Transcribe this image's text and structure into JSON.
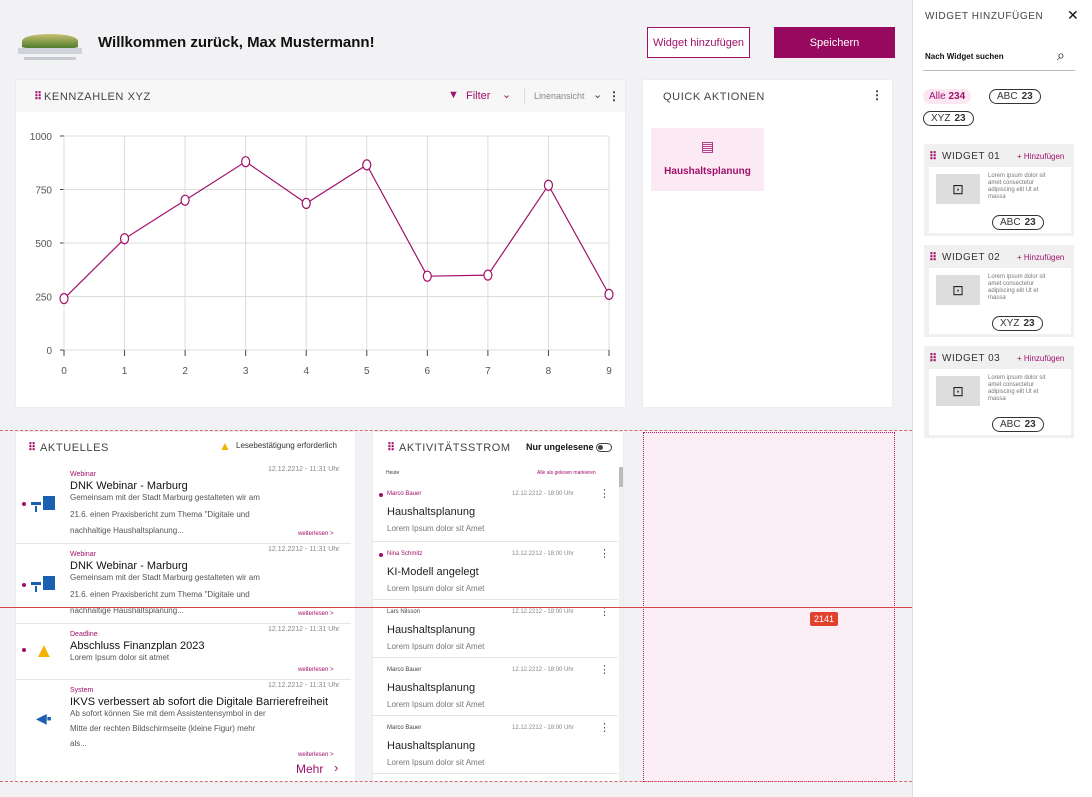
{
  "header": {
    "greeting": "Willkommen zurück, Max Mustermann!",
    "add_widget_label": "Widget hinzufügen",
    "save_label": "Speichern"
  },
  "kennzahlen": {
    "title": "KENNZAHLEN XYZ",
    "filter_label": "Filter",
    "view_label": "Linenansicht"
  },
  "chart_data": {
    "type": "line",
    "x": [
      0,
      1,
      2,
      3,
      4,
      5,
      6,
      7,
      8,
      9
    ],
    "series": [
      {
        "values": [
          240,
          520,
          700,
          880,
          685,
          865,
          345,
          350,
          770,
          260
        ]
      }
    ],
    "x_ticks": [
      "0",
      "1",
      "2",
      "3",
      "4",
      "5",
      "6",
      "7",
      "8",
      "9"
    ],
    "y_ticks": [
      "0",
      "250",
      "500",
      "750",
      "1000"
    ],
    "ylim": [
      0,
      1000
    ],
    "grid": true,
    "color": "#a0106a"
  },
  "quick": {
    "title": "QUICK AKTIONEN",
    "action_label": "Haushaltsplanung"
  },
  "aktuelles": {
    "title": "AKTUELLES",
    "warning": "Lesebestätigung erforderlich",
    "more_label": "Mehr",
    "items": [
      {
        "category": "Webinar",
        "date": "12.12.2212 - 11:31 Uhr",
        "title": "DNK Webinar - Marburg",
        "line1": "Gemeinsam mit der Stadt Marburg gestalteten wir am",
        "line2": "21.6. einen Praxisbericht zum Thema \"Digitale und",
        "line3": "nachhaltige Haushaltsplanung...",
        "link": "weiterlesen >"
      },
      {
        "category": "Webinar",
        "date": "12.12.2212 - 11:31 Uhr",
        "title": "DNK Webinar - Marburg",
        "line1": "Gemeinsam mit der Stadt Marburg gestalteten wir am",
        "line2": "21.6. einen Praxisbericht zum Thema \"Digitale und",
        "line3": "nachhaltige Haushaltsplanung...",
        "link": "weiterlesen >"
      },
      {
        "category": "Deadline",
        "date": "12.12.2212 - 11:31 Uhr",
        "title": "Abschluss Finanzplan 2023",
        "line1": "Lorem Ipsum dolor sit atmet",
        "line2": "",
        "line3": "",
        "link": "weiterlesen >"
      },
      {
        "category": "System",
        "date": "12.12.2212 - 11:31 Uhr",
        "title": "IKVS verbessert ab sofort die Digitale Barrierefreiheit",
        "line1": "Ab sofort können Sie mit dem Assistentensymbol in der",
        "line2": "Mitte der rechten Bildschirmseite  (kleine Figur) mehr",
        "line3": "als...",
        "link": "weiterlesen >"
      }
    ]
  },
  "aktivitaet": {
    "title": "AKTIVITÄTSSTROM",
    "toggle_label": "Nur ungelesene",
    "today": "Heute",
    "mark_all": "Alle als gelesen markieren",
    "items": [
      {
        "user": "Marco Bauer",
        "date": "12.12.2212 - 18:00 Uhr",
        "title": "Haushaltsplanung",
        "desc": "Lorem Ipsum dolor sit Amet"
      },
      {
        "user": "Nina Schmitz",
        "date": "12.12.2212 - 18:00 Uhr",
        "title": "KI-Modell angelegt",
        "desc": "Lorem Ipsum dolor sit Amet"
      },
      {
        "user": "Lars Nilsson",
        "date": "12.12.2212 - 18:00 Uhr",
        "title": "Haushaltsplanung",
        "desc": "Lorem Ipsum dolor sit Amet"
      },
      {
        "user": "Marco Bauer",
        "date": "12.12.2212 - 18:00 Uhr",
        "title": "Haushaltsplanung",
        "desc": "Lorem Ipsum dolor sit Amet"
      },
      {
        "user": "Marco Bauer",
        "date": "12.12.2212 - 18:00 Uhr",
        "title": "Haushaltsplanung",
        "desc": "Lorem Ipsum dolor sit Amet"
      }
    ]
  },
  "drop_badge": "2141",
  "panel": {
    "title": "WIDGET HINZUFÜGEN",
    "search_placeholder": "Nach Widget suchen",
    "chips": [
      {
        "label": "Alle",
        "count": "234"
      },
      {
        "label": "ABC",
        "count": "23"
      },
      {
        "label": "XYZ",
        "count": "23"
      }
    ],
    "add_label": "+ Hinzufügen",
    "widgets": [
      {
        "name": "WIDGET 01",
        "desc1": "Lorem ipsum dolor sit",
        "desc2": "amet consectetur",
        "desc3": "adipiscing elit Ut et",
        "desc4": "massa",
        "tag": "ABC",
        "count": "23"
      },
      {
        "name": "WIDGET 02",
        "desc1": "Lorem ipsum dolor sit",
        "desc2": "amet consectetur",
        "desc3": "adipiscing elit Ut et",
        "desc4": "massa",
        "tag": "XYZ",
        "count": "23"
      },
      {
        "name": "WIDGET 03",
        "desc1": "Lorem ipsum dolor sit",
        "desc2": "amet consectetur",
        "desc3": "adipiscing elit Ut et",
        "desc4": "massa",
        "tag": "ABC",
        "count": "23"
      }
    ]
  }
}
